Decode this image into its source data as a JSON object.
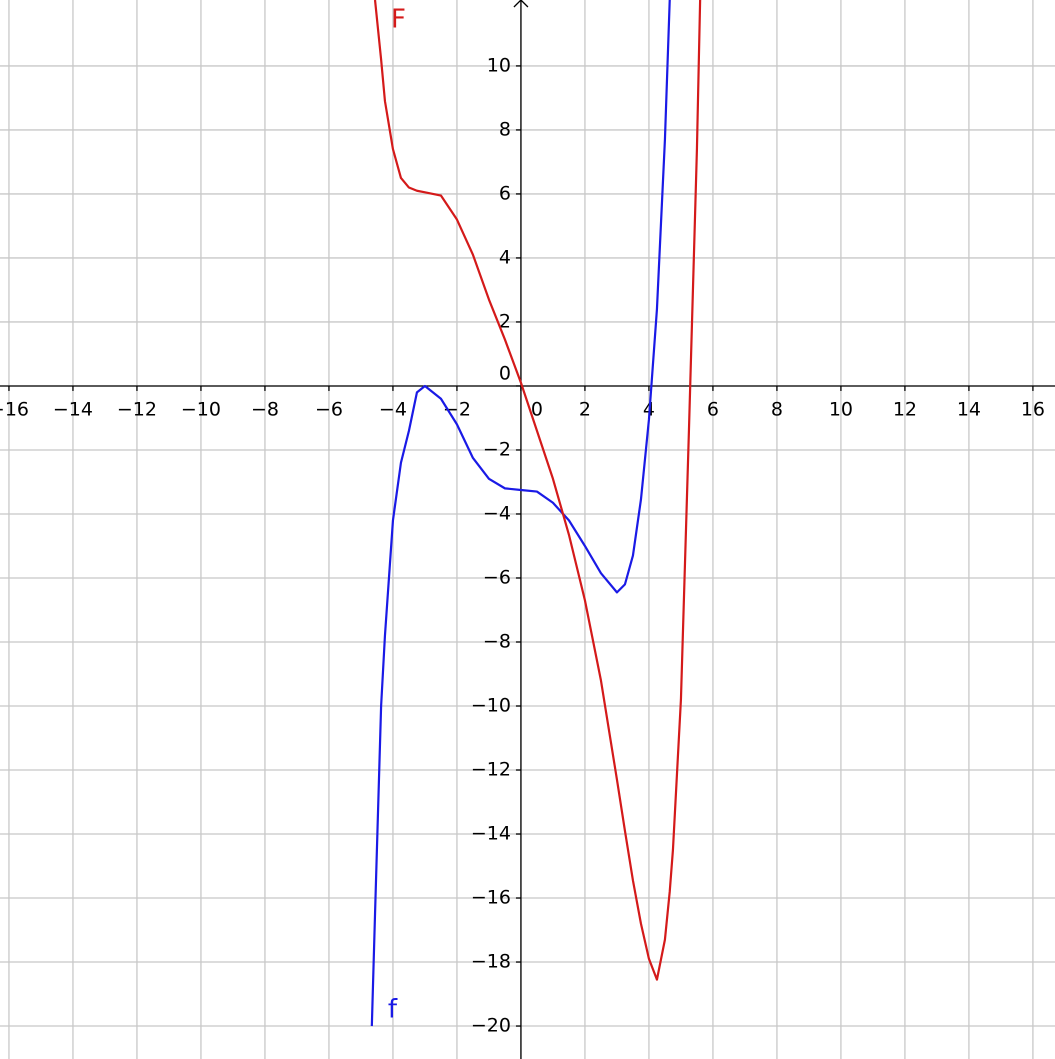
{
  "chart_data": {
    "type": "line",
    "x": [
      -4.66,
      -4.56,
      -4.37,
      -4.25,
      -4,
      -3.75,
      -3.5,
      -3.25,
      -3,
      -2.5,
      -2,
      -1.5,
      -1,
      -0.5,
      0,
      0.5,
      1,
      1.5,
      2,
      2.5,
      3,
      3.25,
      3.5,
      3.75,
      4,
      4.25,
      4.5,
      4.65,
      4.75,
      5,
      5.25,
      5.5,
      5.6
    ],
    "series": [
      {
        "name": "f",
        "color": "#1a1ae6",
        "values": [
          -20,
          -16.5,
          -10,
          -7.8,
          -4.2,
          -2.4,
          -1.4,
          -0.2,
          0,
          -0.4,
          -1.2,
          -2.25,
          -2.9,
          -3.2,
          -3.25,
          -3.3,
          -3.65,
          -4.2,
          -5,
          -5.85,
          -6.45,
          -6.2,
          -5.3,
          -3.55,
          -1.05,
          2.4,
          7.7,
          12.06,
          null,
          null,
          null,
          null,
          null
        ]
      },
      {
        "name": "F",
        "color": "#d41a1a",
        "values": [
          null,
          12.06,
          10.2,
          8.9,
          7.4,
          6.5,
          6.2,
          6.1,
          6.05,
          5.95,
          5.2,
          4.1,
          2.7,
          1.45,
          0.1,
          -1.4,
          -2.9,
          -4.65,
          -6.7,
          -9.2,
          -12.3,
          -13.9,
          -15.45,
          -16.8,
          -17.9,
          -18.55,
          -17.3,
          -15.8,
          -14.5,
          -9.8,
          -1.4,
          7.4,
          12.06
        ]
      }
    ],
    "xlim": [
      -16.28,
      16.69
    ],
    "ylim": [
      -21.03,
      12.06
    ],
    "xticks": [
      {
        "value": -16,
        "label": "−16"
      },
      {
        "value": -14,
        "label": "−14"
      },
      {
        "value": -12,
        "label": "−12"
      },
      {
        "value": -10,
        "label": "−10"
      },
      {
        "value": -8,
        "label": "−8"
      },
      {
        "value": -6,
        "label": "−6"
      },
      {
        "value": -4,
        "label": "−4"
      },
      {
        "value": -2,
        "label": "−2"
      },
      0,
      2,
      4,
      6,
      8,
      10,
      12,
      14,
      16
    ],
    "yticks": [
      {
        "value": -20,
        "label": "−20"
      },
      {
        "value": -18,
        "label": "−18"
      },
      {
        "value": -16,
        "label": "−16"
      },
      {
        "value": -14,
        "label": "−14"
      },
      {
        "value": -12,
        "label": "−12"
      },
      {
        "value": -10,
        "label": "−10"
      },
      {
        "value": -8,
        "label": "−8"
      },
      {
        "value": -6,
        "label": "−6"
      },
      {
        "value": -4,
        "label": "−4"
      },
      {
        "value": -2,
        "label": "−2"
      },
      0,
      2,
      4,
      6,
      8,
      10
    ],
    "grid": true
  }
}
